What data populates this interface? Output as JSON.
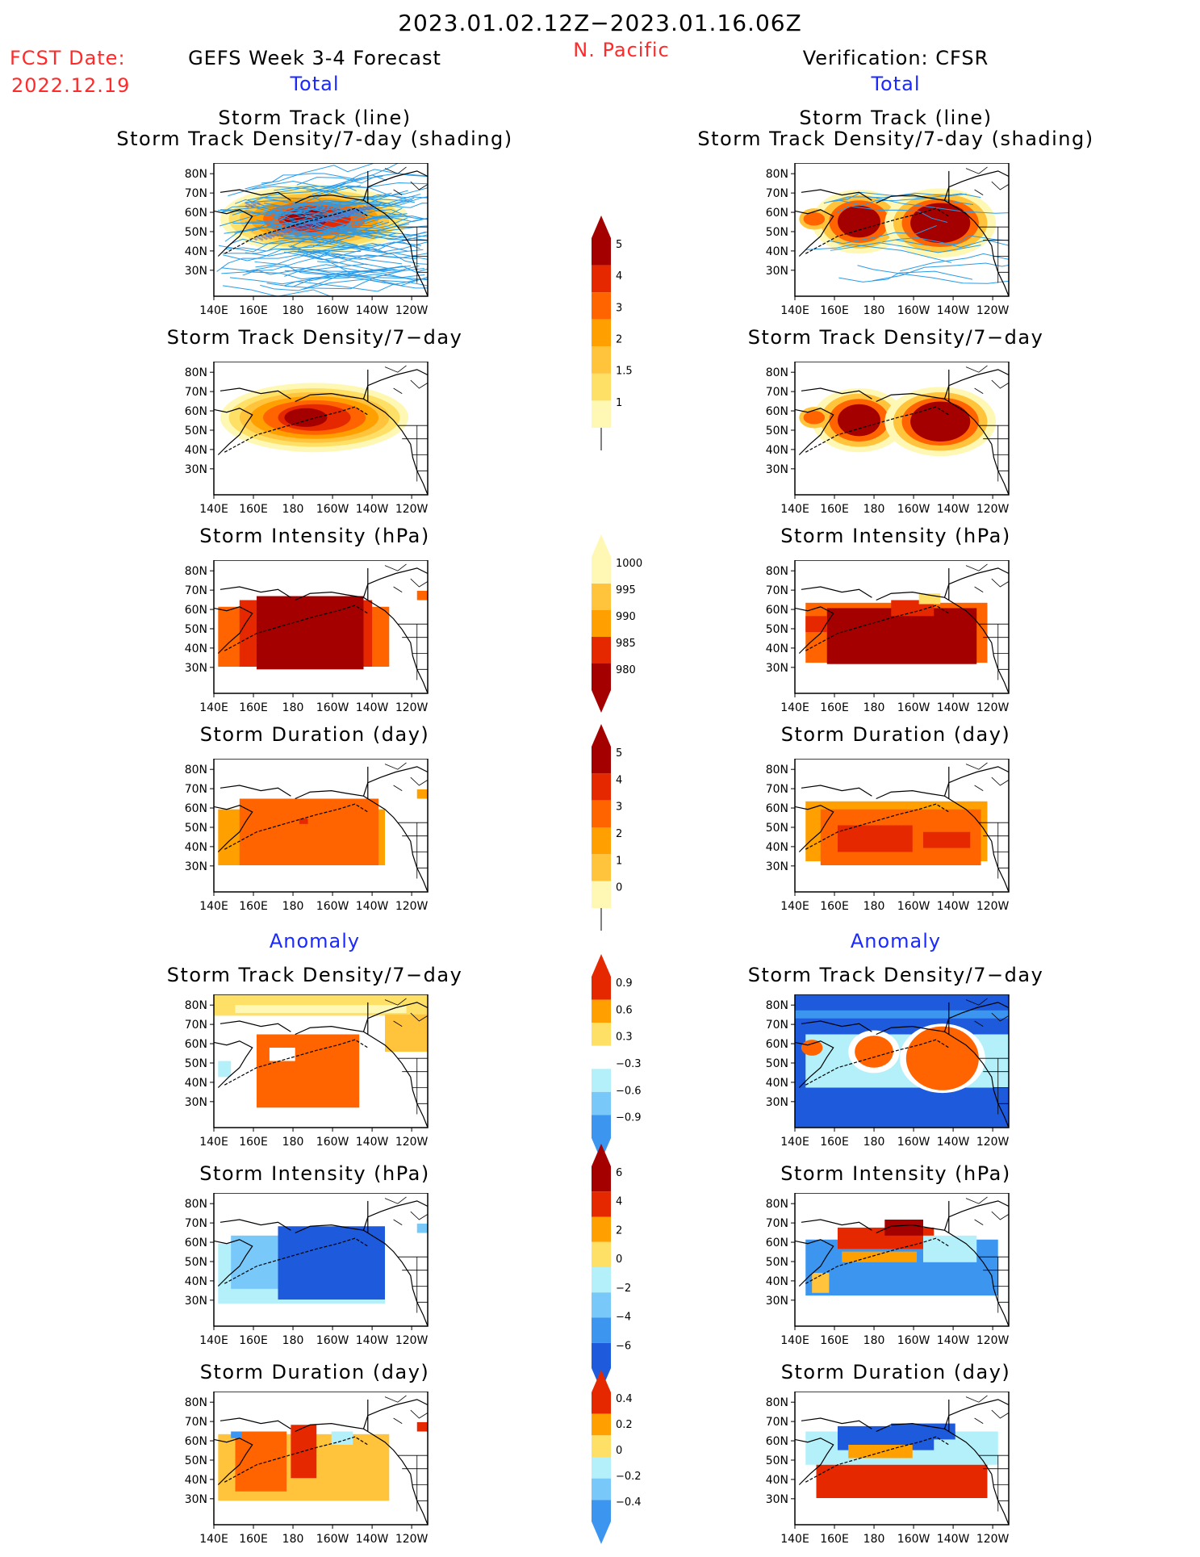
{
  "header": {
    "period": "2023.01.02.12Z−2023.01.16.06Z",
    "region": "N. Pacific",
    "fcst_label": "FCST Date:",
    "fcst_date": "2022.12.19",
    "left_title": "GEFS Week 3-4 Forecast",
    "right_title": "Verification: CFSR",
    "left_sub": "Total",
    "right_sub": "Total"
  },
  "anomaly_label": "Anomaly",
  "panels": {
    "track": [
      "Storm Track (line)",
      "Storm Track Density/7-day (shading)"
    ],
    "density": "Storm Track Density/7−day",
    "intensity": "Storm Intensity (hPa)",
    "duration": "Storm Duration (day)"
  },
  "axes": {
    "lat": [
      "80N",
      "70N",
      "60N",
      "50N",
      "40N",
      "30N"
    ],
    "lon": [
      "140E",
      "160E",
      "180",
      "160W",
      "140W",
      "120W"
    ]
  },
  "colorbars": {
    "density": [
      "5",
      "4",
      "3",
      "2",
      "1.5",
      "1"
    ],
    "intensity": [
      "1000",
      "995",
      "990",
      "985",
      "980"
    ],
    "duration": [
      "5",
      "4",
      "3",
      "2",
      "1",
      "0"
    ],
    "density_anom": [
      "0.9",
      "0.6",
      "0.3",
      "−0.3",
      "−0.6",
      "−0.9"
    ],
    "intensity_anom": [
      "6",
      "4",
      "2",
      "0",
      "−2",
      "−4",
      "−6"
    ],
    "duration_anom": [
      "0.4",
      "0.2",
      "0",
      "−0.2",
      "−0.4"
    ]
  },
  "colors": {
    "warm": [
      "#fff8b4",
      "#ffe066",
      "#ffc33c",
      "#ffa000",
      "#ff6400",
      "#e62800",
      "#a50000"
    ],
    "cool": [
      "#b4f0fa",
      "#78c8fa",
      "#3c96f0",
      "#1e5adc"
    ],
    "track_line": "#2a9be6"
  }
}
